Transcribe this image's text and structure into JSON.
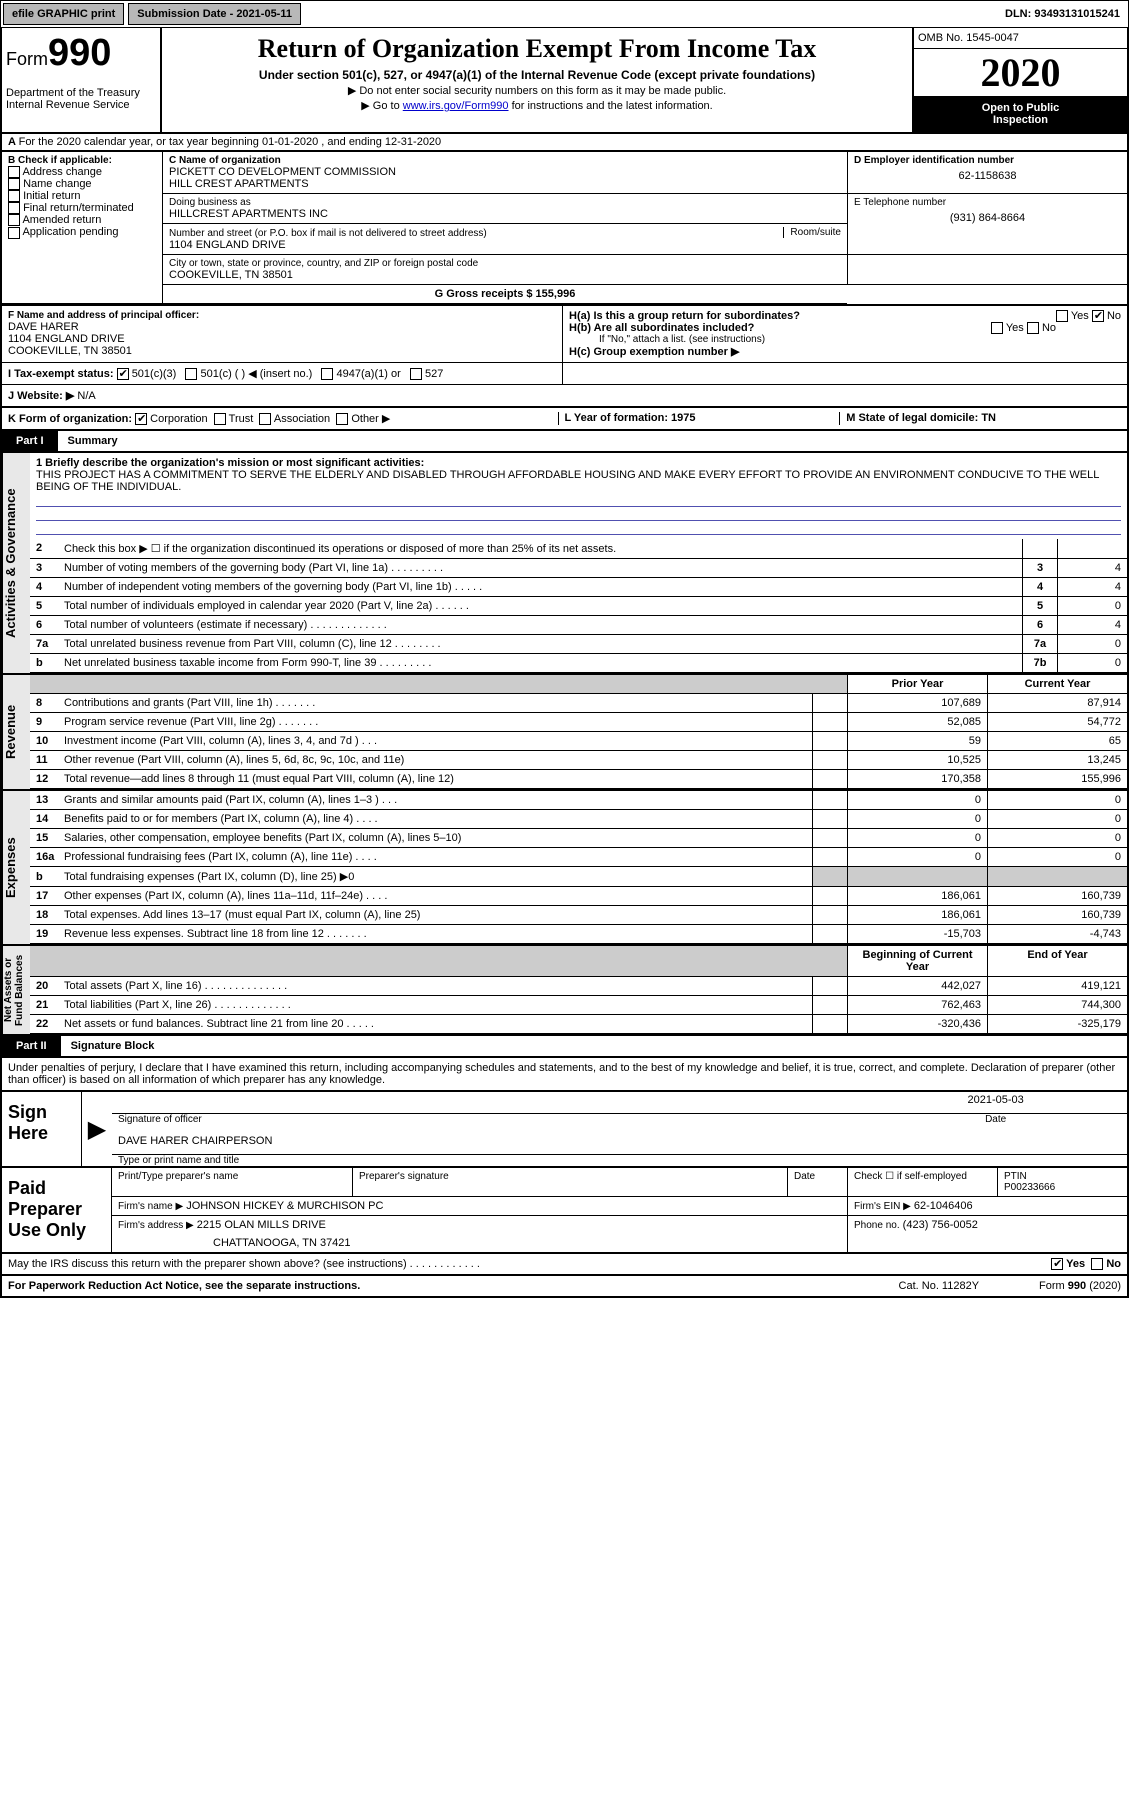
{
  "topbar": {
    "efile": "efile GRAPHIC print",
    "subdate_label": "Submission Date - 2021-05-11",
    "dln": "DLN: 93493131015241"
  },
  "header": {
    "form_label": "Form",
    "form_number": "990",
    "title": "Return of Organization Exempt From Income Tax",
    "subtitle": "Under section 501(c), 527, or 4947(a)(1) of the Internal Revenue Code (except private foundations)",
    "note1": "Do not enter social security numbers on this form as it may be made public.",
    "note2_pre": "Go to ",
    "note2_link": "www.irs.gov/Form990",
    "note2_post": " for instructions and the latest information.",
    "dept": "Department of the Treasury\nInternal Revenue Service",
    "omb": "OMB No. 1545-0047",
    "year": "2020",
    "open": "Open to Public\nInspection"
  },
  "rowA": {
    "text": "For the 2020 calendar year, or tax year beginning 01-01-2020    , and ending 12-31-2020"
  },
  "orgblock": {
    "b_label": "B Check if applicable:",
    "chk_addr": "Address change",
    "chk_name": "Name change",
    "chk_init": "Initial return",
    "chk_final": "Final return/terminated",
    "chk_amended": "Amended return",
    "chk_app": "Application pending",
    "c_label": "C Name of organization",
    "c_name": "PICKETT CO DEVELOPMENT COMMISSION\nHILL CREST APARTMENTS",
    "dba_label": "Doing business as",
    "dba": "HILLCREST APARTMENTS INC",
    "addr_label": "Number and street (or P.O. box if mail is not delivered to street address)",
    "addr": "1104 ENGLAND DRIVE",
    "room_label": "Room/suite",
    "city_label": "City or town, state or province, country, and ZIP or foreign postal code",
    "city": "COOKEVILLE, TN  38501",
    "d_label": "D Employer identification number",
    "ein": "62-1158638",
    "e_label": "E Telephone number",
    "phone": "(931) 864-8664",
    "g_label": "G Gross receipts $ 155,996",
    "f_label": "F  Name and address of principal officer:",
    "f_name": "DAVE HARER\n1104 ENGLAND DRIVE\nCOOKEVILLE, TN  38501",
    "h_a": "H(a)  Is this a group return for subordinates?",
    "h_b": "H(b)  Are all subordinates included?",
    "h_b_note": "If \"No,\" attach a list. (see instructions)",
    "h_c": "H(c)  Group exemption number ▶",
    "yes": "Yes",
    "no": "No",
    "i_label": "I   Tax-exempt status:",
    "i_501c3": "501(c)(3)",
    "i_501c": "501(c) (   ) ◀ (insert no.)",
    "i_4947": "4947(a)(1) or",
    "i_527": "527",
    "j_label": "J   Website: ▶",
    "j_val": "N/A",
    "k_label": "K Form of organization:",
    "k_corp": "Corporation",
    "k_trust": "Trust",
    "k_assoc": "Association",
    "k_other": "Other ▶",
    "l_label": "L Year of formation: 1975",
    "m_label": "M State of legal domicile: TN"
  },
  "part1": {
    "label": "Part I",
    "title": "Summary"
  },
  "mission": {
    "line1_label": "1  Briefly describe the organization's mission or most significant activities:",
    "text": "THIS PROJECT HAS A COMMITMENT TO SERVE THE ELDERLY AND DISABLED THROUGH AFFORDABLE HOUSING AND MAKE EVERY EFFORT TO PROVIDE AN ENVIRONMENT CONDUCIVE TO THE WELL BEING OF THE INDIVIDUAL."
  },
  "gov_lines": [
    {
      "n": "2",
      "t": "Check this box ▶ ☐ if the organization discontinued its operations or disposed of more than 25% of its net assets.",
      "rn": "",
      "rv": ""
    },
    {
      "n": "3",
      "t": "Number of voting members of the governing body (Part VI, line 1a)  .  .  .  .  .  .  .  .  .",
      "rn": "3",
      "rv": "4"
    },
    {
      "n": "4",
      "t": "Number of independent voting members of the governing body (Part VI, line 1b)  .  .  .  .  .",
      "rn": "4",
      "rv": "4"
    },
    {
      "n": "5",
      "t": "Total number of individuals employed in calendar year 2020 (Part V, line 2a)  .  .  .  .  .  .",
      "rn": "5",
      "rv": "0"
    },
    {
      "n": "6",
      "t": "Total number of volunteers (estimate if necessary)  .  .  .  .  .  .  .  .  .  .  .  .  .",
      "rn": "6",
      "rv": "4"
    },
    {
      "n": "7a",
      "t": "Total unrelated business revenue from Part VIII, column (C), line 12  .  .  .  .  .  .  .  .",
      "rn": "7a",
      "rv": "0"
    },
    {
      "n": "b",
      "t": "Net unrelated business taxable income from Form 990-T, line 39  .  .  .  .  .  .  .  .  .",
      "rn": "7b",
      "rv": "0"
    }
  ],
  "money": {
    "prior_label": "Prior Year",
    "curr_label": "Current Year",
    "beg_label": "Beginning of Current Year",
    "end_label": "End of Year",
    "rev": [
      {
        "n": "8",
        "t": "Contributions and grants (Part VIII, line 1h)  .  .  .  .  .  .  .",
        "p": "107,689",
        "c": "87,914"
      },
      {
        "n": "9",
        "t": "Program service revenue (Part VIII, line 2g)  .  .  .  .  .  .  .",
        "p": "52,085",
        "c": "54,772"
      },
      {
        "n": "10",
        "t": "Investment income (Part VIII, column (A), lines 3, 4, and 7d )  .  .  .",
        "p": "59",
        "c": "65"
      },
      {
        "n": "11",
        "t": "Other revenue (Part VIII, column (A), lines 5, 6d, 8c, 9c, 10c, and 11e)",
        "p": "10,525",
        "c": "13,245"
      },
      {
        "n": "12",
        "t": "Total revenue—add lines 8 through 11 (must equal Part VIII, column (A), line 12)",
        "p": "170,358",
        "c": "155,996"
      }
    ],
    "exp": [
      {
        "n": "13",
        "t": "Grants and similar amounts paid (Part IX, column (A), lines 1–3 )  .  .  .",
        "p": "0",
        "c": "0"
      },
      {
        "n": "14",
        "t": "Benefits paid to or for members (Part IX, column (A), line 4)  .  .  .  .",
        "p": "0",
        "c": "0"
      },
      {
        "n": "15",
        "t": "Salaries, other compensation, employee benefits (Part IX, column (A), lines 5–10)",
        "p": "0",
        "c": "0"
      },
      {
        "n": "16a",
        "t": "Professional fundraising fees (Part IX, column (A), line 11e)  .  .  .  .",
        "p": "0",
        "c": "0"
      },
      {
        "n": "b",
        "t": "Total fundraising expenses (Part IX, column (D), line 25) ▶0",
        "p": "",
        "c": "",
        "shaded": true
      },
      {
        "n": "17",
        "t": "Other expenses (Part IX, column (A), lines 11a–11d, 11f–24e)  .  .  .  .",
        "p": "186,061",
        "c": "160,739"
      },
      {
        "n": "18",
        "t": "Total expenses. Add lines 13–17 (must equal Part IX, column (A), line 25)",
        "p": "186,061",
        "c": "160,739"
      },
      {
        "n": "19",
        "t": "Revenue less expenses. Subtract line 18 from line 12  .  .  .  .  .  .  .",
        "p": "-15,703",
        "c": "-4,743"
      }
    ],
    "net": [
      {
        "n": "20",
        "t": "Total assets (Part X, line 16)  .  .  .  .  .  .  .  .  .  .  .  .  .  .",
        "p": "442,027",
        "c": "419,121"
      },
      {
        "n": "21",
        "t": "Total liabilities (Part X, line 26)  .  .  .  .  .  .  .  .  .  .  .  .  .",
        "p": "762,463",
        "c": "744,300"
      },
      {
        "n": "22",
        "t": "Net assets or fund balances. Subtract line 21 from line 20  .  .  .  .  .",
        "p": "-320,436",
        "c": "-325,179"
      }
    ]
  },
  "vlabels": {
    "gov": "Activities & Governance",
    "rev": "Revenue",
    "exp": "Expenses",
    "net": "Net Assets or\nFund Balances"
  },
  "part2": {
    "label": "Part II",
    "title": "Signature Block"
  },
  "penalty": "Under penalties of perjury, I declare that I have examined this return, including accompanying schedules and statements, and to the best of my knowledge and belief, it is true, correct, and complete. Declaration of preparer (other than officer) is based on all information of which preparer has any knowledge.",
  "sign": {
    "here": "Sign\nHere",
    "sig_label": "Signature of officer",
    "date_label": "Date",
    "date": "2021-05-03",
    "name": "DAVE HARER  CHAIRPERSON",
    "name_label": "Type or print name and title"
  },
  "paid": {
    "label": "Paid\nPreparer\nUse Only",
    "c1": "Print/Type preparer's name",
    "c2": "Preparer's signature",
    "c3": "Date",
    "chk": "Check ☐ if self-employed",
    "ptin_label": "PTIN",
    "ptin": "P00233666",
    "firm_label": "Firm's name    ▶",
    "firm": "JOHNSON HICKEY & MURCHISON PC",
    "firm_ein_label": "Firm's EIN ▶",
    "firm_ein": "62-1046406",
    "addr_label": "Firm's address ▶",
    "addr1": "2215 OLAN MILLS DRIVE",
    "addr2": "CHATTANOOGA, TN  37421",
    "phone_label": "Phone no.",
    "phone": "(423) 756-0052"
  },
  "discuss": {
    "q": "May the IRS discuss this return with the preparer shown above? (see instructions)  .  .  .  .  .  .  .  .  .  .  .  .",
    "yes": "Yes",
    "no": "No"
  },
  "footer": {
    "left": "For Paperwork Reduction Act Notice, see the separate instructions.",
    "mid": "Cat. No. 11282Y",
    "right": "Form 990 (2020)"
  }
}
